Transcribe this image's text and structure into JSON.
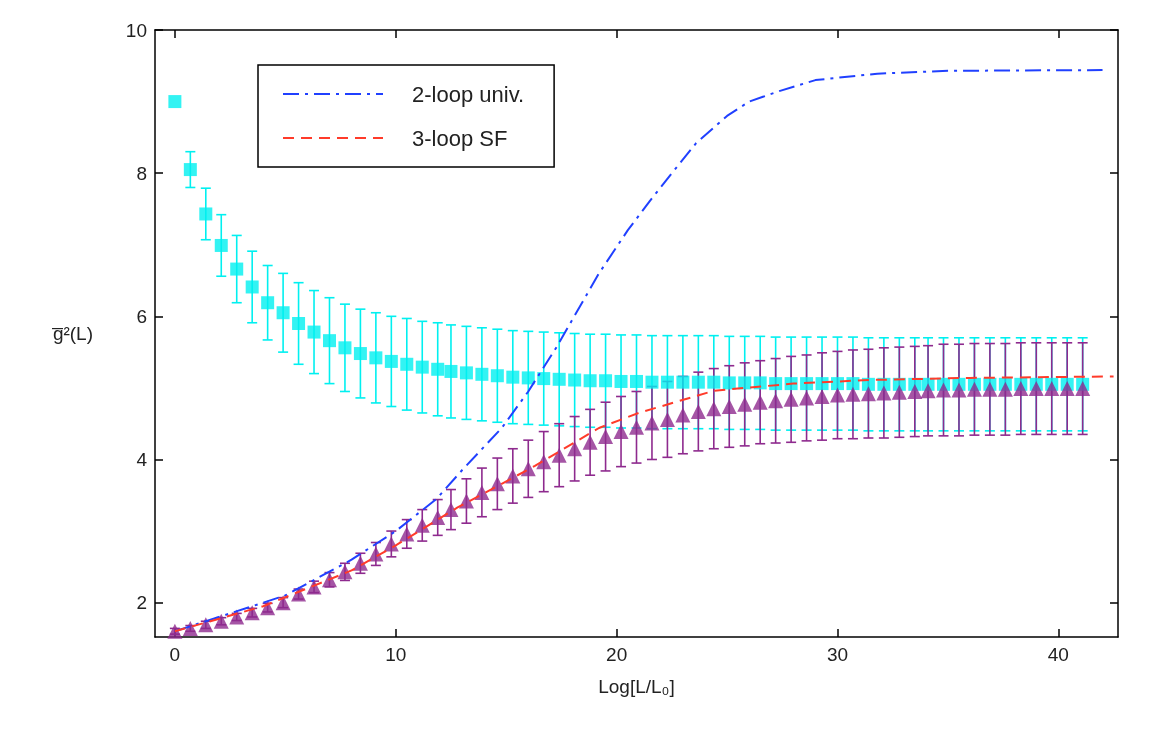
{
  "chart_data": {
    "type": "scatter",
    "xlabel": "Log[L/L₀]",
    "ylabel": "g̅²(L)",
    "xlim": [
      -0.9,
      42.7
    ],
    "ylim": [
      1.52,
      10
    ],
    "xticks": [
      0,
      10,
      20,
      30,
      40
    ],
    "yticks": [
      2,
      4,
      6,
      8,
      10
    ],
    "grid": false,
    "legend": "top left",
    "series": [
      {
        "color": "#00f0f0",
        "marker": "square",
        "x": [
          0,
          0.7,
          1.4,
          2.1,
          2.8,
          3.5,
          4.2,
          4.9,
          5.6,
          6.3,
          7.0,
          7.7,
          8.4,
          9.1,
          9.8,
          10.5,
          11.2,
          11.9,
          12.5,
          13.2,
          13.9,
          14.6,
          15.3,
          16.0,
          16.7,
          17.4,
          18.1,
          18.8,
          19.5,
          20.2,
          20.9,
          21.6,
          22.3,
          23.0,
          23.7,
          24.4,
          25.1,
          25.8,
          26.5,
          27.2,
          27.9,
          28.6,
          29.3,
          30.0,
          30.7,
          31.4,
          32.1,
          32.8,
          33.5,
          34.1,
          34.8,
          35.5,
          36.2,
          36.9,
          37.6,
          38.3,
          39.0,
          39.7,
          40.4,
          41.1
        ],
        "values": [
          9.0,
          8.05,
          7.43,
          6.99,
          6.66,
          6.41,
          6.19,
          6.05,
          5.9,
          5.78,
          5.66,
          5.56,
          5.48,
          5.42,
          5.37,
          5.33,
          5.29,
          5.26,
          5.23,
          5.21,
          5.19,
          5.17,
          5.15,
          5.14,
          5.13,
          5.12,
          5.11,
          5.1,
          5.1,
          5.09,
          5.09,
          5.08,
          5.08,
          5.08,
          5.08,
          5.08,
          5.07,
          5.07,
          5.07,
          5.06,
          5.06,
          5.06,
          5.06,
          5.06,
          5.06,
          5.05,
          5.05,
          5.05,
          5.05,
          5.05,
          5.05,
          5.05,
          5.05,
          5.05,
          5.05,
          5.05,
          5.05,
          5.05,
          5.05,
          5.05
        ],
        "errors": [
          null,
          0.25,
          0.36,
          0.43,
          0.47,
          0.5,
          0.52,
          0.55,
          0.57,
          0.58,
          0.6,
          0.61,
          0.62,
          0.63,
          0.63,
          0.64,
          0.64,
          0.65,
          0.65,
          0.65,
          0.65,
          0.65,
          0.65,
          0.65,
          0.65,
          0.65,
          0.65,
          0.65,
          0.65,
          0.65,
          0.65,
          0.65,
          0.65,
          0.65,
          0.65,
          0.65,
          0.65,
          0.65,
          0.65,
          0.65,
          0.65,
          0.65,
          0.65,
          0.65,
          0.65,
          0.65,
          0.65,
          0.65,
          0.65,
          0.65,
          0.65,
          0.65,
          0.65,
          0.65,
          0.65,
          0.65,
          0.65,
          0.65,
          0.65,
          0.65
        ]
      },
      {
        "color": "#8e2a8e",
        "marker": "triangle",
        "x": [
          0,
          0.7,
          1.4,
          2.1,
          2.8,
          3.5,
          4.2,
          4.9,
          5.6,
          6.3,
          7.0,
          7.7,
          8.4,
          9.1,
          9.8,
          10.5,
          11.2,
          11.9,
          12.5,
          13.2,
          13.9,
          14.6,
          15.3,
          16.0,
          16.7,
          17.4,
          18.1,
          18.8,
          19.5,
          20.2,
          20.9,
          21.6,
          22.3,
          23.0,
          23.7,
          24.4,
          25.1,
          25.8,
          26.5,
          27.2,
          27.9,
          28.6,
          29.3,
          30.0,
          30.7,
          31.4,
          32.1,
          32.8,
          33.5,
          34.1,
          34.8,
          35.5,
          36.2,
          36.9,
          37.6,
          38.3,
          39.0,
          39.7,
          40.4,
          41.1
        ],
        "values": [
          1.6,
          1.64,
          1.69,
          1.74,
          1.8,
          1.86,
          1.93,
          2.0,
          2.12,
          2.22,
          2.32,
          2.43,
          2.55,
          2.68,
          2.82,
          2.96,
          3.08,
          3.19,
          3.3,
          3.42,
          3.54,
          3.66,
          3.77,
          3.87,
          3.97,
          4.06,
          4.15,
          4.24,
          4.32,
          4.39,
          4.45,
          4.51,
          4.56,
          4.62,
          4.67,
          4.71,
          4.74,
          4.77,
          4.8,
          4.82,
          4.84,
          4.86,
          4.88,
          4.9,
          4.91,
          4.92,
          4.93,
          4.94,
          4.95,
          4.96,
          4.97,
          4.97,
          4.98,
          4.98,
          4.98,
          4.99,
          4.99,
          4.99,
          4.99,
          4.99
        ],
        "errors": [
          0.04,
          0.04,
          0.05,
          0.05,
          0.05,
          0.06,
          0.06,
          0.07,
          0.07,
          0.08,
          0.1,
          0.12,
          0.14,
          0.16,
          0.18,
          0.2,
          0.22,
          0.25,
          0.28,
          0.31,
          0.34,
          0.36,
          0.38,
          0.4,
          0.42,
          0.44,
          0.45,
          0.46,
          0.48,
          0.49,
          0.5,
          0.51,
          0.53,
          0.54,
          0.55,
          0.56,
          0.57,
          0.58,
          0.58,
          0.59,
          0.6,
          0.6,
          0.61,
          0.61,
          0.62,
          0.62,
          0.63,
          0.63,
          0.63,
          0.63,
          0.64,
          0.64,
          0.64,
          0.64,
          0.64,
          0.64,
          0.64,
          0.64,
          0.64,
          0.64
        ]
      },
      {
        "type": "line",
        "name": "2-loop univ.",
        "color": "#2040ff",
        "marker": "none",
        "line_style": "dashdot",
        "x": [
          0,
          5,
          8,
          10,
          11.85,
          13,
          14.8,
          16,
          17.3,
          19.2,
          20.5,
          21.5,
          22.5,
          23.6,
          25,
          26,
          27.4,
          29,
          31.8,
          35,
          42
        ],
        "values": [
          1.6,
          2.1,
          2.6,
          3.0,
          3.45,
          3.85,
          4.44,
          4.95,
          5.58,
          6.6,
          7.2,
          7.61,
          8.0,
          8.42,
          8.8,
          9.0,
          9.15,
          9.3,
          9.39,
          9.43,
          9.44
        ]
      },
      {
        "type": "line",
        "name": "3-loop SF",
        "color": "#ff3b2a",
        "marker": "none",
        "line_style": "dashed",
        "x": [
          0,
          4,
          8,
          10,
          12.8,
          16.3,
          19.2,
          21,
          24.4,
          28,
          31.4,
          36,
          42.5
        ],
        "values": [
          1.6,
          1.95,
          2.45,
          2.8,
          3.33,
          3.91,
          4.44,
          4.65,
          4.96,
          5.06,
          5.11,
          5.14,
          5.16
        ]
      }
    ]
  }
}
